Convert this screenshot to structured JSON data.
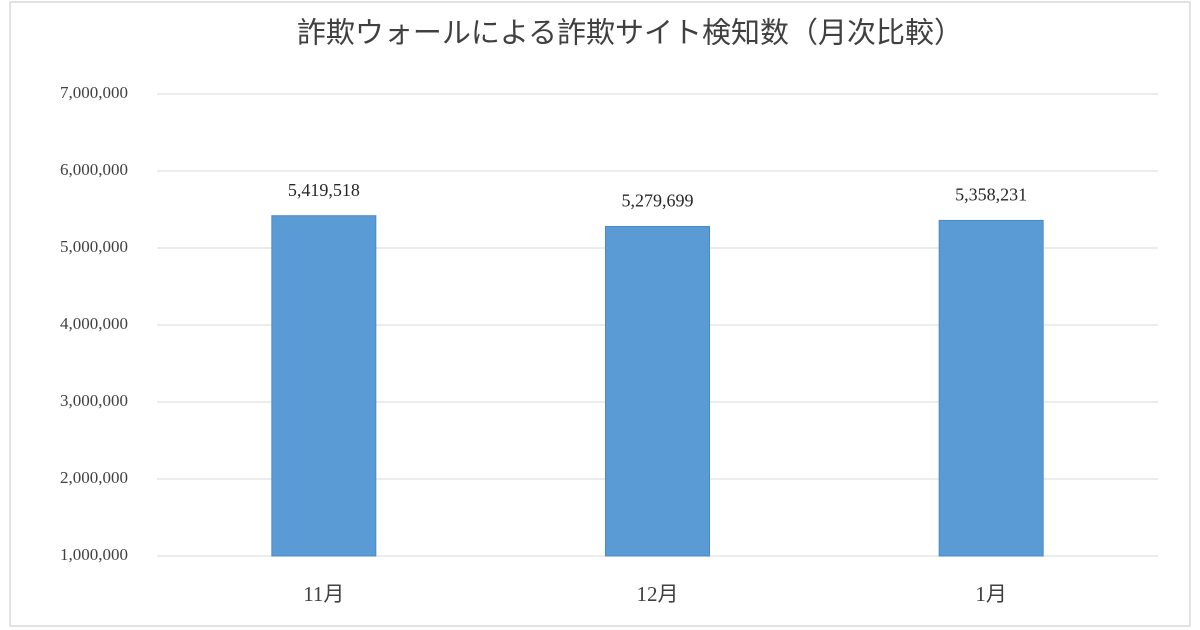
{
  "chart_data": {
    "type": "bar",
    "title": "詐欺ウォールによる詐欺サイト検知数（月次比較）",
    "categories": [
      "11月",
      "12月",
      "1月"
    ],
    "values": [
      5419518,
      5279699,
      5358231
    ],
    "value_labels": [
      "5,419,518",
      "5,279,699",
      "5,358,231"
    ],
    "color": "#5b9bd5",
    "ylim": [
      1000000,
      7000000
    ],
    "yticks": [
      {
        "value": 1000000,
        "label": "1,000,000"
      },
      {
        "value": 2000000,
        "label": "2,000,000"
      },
      {
        "value": 3000000,
        "label": "3,000,000"
      },
      {
        "value": 4000000,
        "label": "4,000,000"
      },
      {
        "value": 5000000,
        "label": "5,000,000"
      },
      {
        "value": 6000000,
        "label": "6,000,000"
      },
      {
        "value": 7000000,
        "label": "7,000,000"
      }
    ],
    "grid": true
  }
}
